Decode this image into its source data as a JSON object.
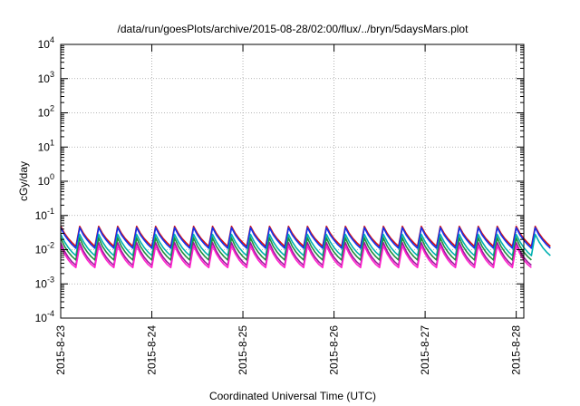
{
  "chart_data": {
    "type": "line",
    "title": "/data/run/goesPlots/archive/2015-08-28/02:00/flux/../bryn/5daysMars.plot",
    "xlabel": "Coordinated Universal Time (UTC)",
    "ylabel": "cGy/day",
    "yscale": "log",
    "ylim": [
      0.0001,
      10000
    ],
    "y_ticks": [
      {
        "base": "10",
        "exp": "-4",
        "value": 0.0001
      },
      {
        "base": "10",
        "exp": "-3",
        "value": 0.001
      },
      {
        "base": "10",
        "exp": "-2",
        "value": 0.01
      },
      {
        "base": "10",
        "exp": "-1",
        "value": 0.1
      },
      {
        "base": "10",
        "exp": "0",
        "value": 1
      },
      {
        "base": "10",
        "exp": "1",
        "value": 10
      },
      {
        "base": "10",
        "exp": "2",
        "value": 100
      },
      {
        "base": "10",
        "exp": "3",
        "value": 1000
      },
      {
        "base": "10",
        "exp": "4",
        "value": 10000
      }
    ],
    "xlim": [
      "2015-08-23 00:00",
      "2015-08-28 02:00"
    ],
    "x_ticks": [
      "2015-8-23",
      "2015-8-24",
      "2015-8-25",
      "2015-8-26",
      "2015-8-27",
      "2015-8-28"
    ],
    "grid": true,
    "legend": "none",
    "sample_interval_hours": 1,
    "series_colors": [
      "#dd1111",
      "#1133ee",
      "#00b0b0",
      "#1f8f3f",
      "#9b1a9b",
      "#ff22cc"
    ],
    "series": [
      {
        "values": [
          0.048,
          0.03,
          0.021,
          0.016,
          0.0125,
          0.048,
          0.03,
          0.021,
          0.016,
          0.0125,
          0.048,
          0.03,
          0.021,
          0.016,
          0.0125,
          0.048,
          0.03,
          0.021,
          0.016,
          0.0125,
          0.048,
          0.03,
          0.021,
          0.016,
          0.0125,
          0.048,
          0.03,
          0.021,
          0.016,
          0.0125,
          0.048,
          0.03,
          0.021,
          0.016,
          0.0125,
          0.048,
          0.03,
          0.021,
          0.016,
          0.0125,
          0.048,
          0.03,
          0.021,
          0.016,
          0.0125,
          0.048,
          0.03,
          0.021,
          0.016,
          0.0125,
          0.048,
          0.03,
          0.021,
          0.016,
          0.0125,
          0.048,
          0.03,
          0.021,
          0.016,
          0.0125,
          0.048,
          0.03,
          0.021,
          0.016,
          0.0125,
          0.048,
          0.03,
          0.021,
          0.016,
          0.0125,
          0.048,
          0.03,
          0.021,
          0.016,
          0.0125,
          0.048,
          0.03,
          0.021,
          0.016,
          0.0125,
          0.048,
          0.03,
          0.021,
          0.016,
          0.0125,
          0.048,
          0.03,
          0.021,
          0.016,
          0.0125,
          0.048,
          0.03,
          0.021,
          0.016,
          0.0125,
          0.048,
          0.03,
          0.021,
          0.016,
          0.0125,
          0.048,
          0.03,
          0.021,
          0.016,
          0.0125,
          0.048,
          0.03,
          0.021,
          0.016,
          0.0125,
          0.048,
          0.03,
          0.021,
          0.016,
          0.0125,
          0.048,
          0.03,
          0.021,
          0.016,
          0.0125,
          0.048,
          0.03,
          0.021,
          0.016,
          0.0125,
          0.048,
          0.03,
          0.021,
          0.016,
          0.0125
        ]
      },
      {
        "values": [
          0.044,
          0.027,
          0.019,
          0.014,
          0.011,
          0.044,
          0.027,
          0.019,
          0.014,
          0.011,
          0.044,
          0.027,
          0.019,
          0.014,
          0.011,
          0.044,
          0.027,
          0.019,
          0.014,
          0.011,
          0.044,
          0.027,
          0.019,
          0.014,
          0.011,
          0.044,
          0.027,
          0.019,
          0.014,
          0.011,
          0.044,
          0.027,
          0.019,
          0.014,
          0.011,
          0.044,
          0.027,
          0.019,
          0.014,
          0.011,
          0.044,
          0.027,
          0.019,
          0.014,
          0.011,
          0.044,
          0.027,
          0.019,
          0.014,
          0.011,
          0.044,
          0.027,
          0.019,
          0.014,
          0.011,
          0.044,
          0.027,
          0.019,
          0.014,
          0.011,
          0.044,
          0.027,
          0.019,
          0.014,
          0.011,
          0.044,
          0.027,
          0.019,
          0.014,
          0.011,
          0.044,
          0.027,
          0.019,
          0.014,
          0.011,
          0.044,
          0.027,
          0.019,
          0.014,
          0.011,
          0.044,
          0.027,
          0.019,
          0.014,
          0.011,
          0.044,
          0.027,
          0.019,
          0.014,
          0.011,
          0.044,
          0.027,
          0.019,
          0.014,
          0.011,
          0.044,
          0.027,
          0.019,
          0.014,
          0.011,
          0.044,
          0.027,
          0.019,
          0.014,
          0.011,
          0.044,
          0.027,
          0.019,
          0.014,
          0.011,
          0.044,
          0.027,
          0.019,
          0.014,
          0.011,
          0.044,
          0.027,
          0.019,
          0.014,
          0.011,
          0.044,
          0.027,
          0.019,
          0.014,
          0.011,
          0.044,
          0.027,
          0.019,
          0.014,
          0.011
        ]
      },
      {
        "values": [
          0.028,
          0.017,
          0.0115,
          0.0085,
          0.0067,
          0.028,
          0.017,
          0.0115,
          0.0085,
          0.0067,
          0.028,
          0.017,
          0.0115,
          0.0085,
          0.0067,
          0.028,
          0.017,
          0.0115,
          0.0085,
          0.0067,
          0.028,
          0.017,
          0.0115,
          0.0085,
          0.0067,
          0.028,
          0.017,
          0.0115,
          0.0085,
          0.0067,
          0.028,
          0.017,
          0.0115,
          0.0085,
          0.0067,
          0.028,
          0.017,
          0.0115,
          0.0085,
          0.0067,
          0.028,
          0.017,
          0.0115,
          0.0085,
          0.0067,
          0.028,
          0.017,
          0.0115,
          0.0085,
          0.0067,
          0.028,
          0.017,
          0.0115,
          0.0085,
          0.0067,
          0.028,
          0.017,
          0.0115,
          0.0085,
          0.0067,
          0.028,
          0.017,
          0.0115,
          0.0085,
          0.0067,
          0.028,
          0.017,
          0.0115,
          0.0085,
          0.0067,
          0.028,
          0.017,
          0.0115,
          0.0085,
          0.0067,
          0.028,
          0.017,
          0.0115,
          0.0085,
          0.0067,
          0.028,
          0.017,
          0.0115,
          0.0085,
          0.0067,
          0.028,
          0.017,
          0.0115,
          0.0085,
          0.0067,
          0.028,
          0.017,
          0.0115,
          0.0085,
          0.0067,
          0.028,
          0.017,
          0.0115,
          0.0085,
          0.0067,
          0.028,
          0.017,
          0.0115,
          0.0085,
          0.0067,
          0.028,
          0.017,
          0.0115,
          0.0085,
          0.0067,
          0.028,
          0.017,
          0.0115,
          0.0085,
          0.0067,
          0.028,
          0.017,
          0.0115,
          0.0085,
          0.0067,
          0.028,
          0.017,
          0.0115,
          0.0085,
          0.0067,
          0.028,
          0.017,
          0.0115,
          0.0085,
          0.0067
        ]
      },
      {
        "values": [
          0.022,
          0.0125,
          0.0085,
          0.0063,
          0.005,
          0.022,
          0.0125,
          0.0085,
          0.0063,
          0.005,
          0.022,
          0.0125,
          0.0085,
          0.0063,
          0.005,
          0.022,
          0.0125,
          0.0085,
          0.0063,
          0.005,
          0.022,
          0.0125,
          0.0085,
          0.0063,
          0.005,
          0.022,
          0.0125,
          0.0085,
          0.0063,
          0.005,
          0.022,
          0.0125,
          0.0085,
          0.0063,
          0.005,
          0.022,
          0.0125,
          0.0085,
          0.0063,
          0.005,
          0.022,
          0.0125,
          0.0085,
          0.0063,
          0.005,
          0.022,
          0.0125,
          0.0085,
          0.0063,
          0.005,
          0.022,
          0.0125,
          0.0085,
          0.0063,
          0.005,
          0.022,
          0.0125,
          0.0085,
          0.0063,
          0.005,
          0.022,
          0.0125,
          0.0085,
          0.0063,
          0.005,
          0.022,
          0.0125,
          0.0085,
          0.0063,
          0.005,
          0.022,
          0.0125,
          0.0085,
          0.0063,
          0.005,
          0.022,
          0.0125,
          0.0085,
          0.0063,
          0.005,
          0.022,
          0.0125,
          0.0085,
          0.0063,
          0.005,
          0.022,
          0.0125,
          0.0085,
          0.0063,
          0.005,
          0.022,
          0.0125,
          0.0085,
          0.0063,
          0.005,
          0.022,
          0.0125,
          0.0085,
          0.0063,
          0.005,
          0.022,
          0.0125,
          0.0085,
          0.0063,
          0.005,
          0.022,
          0.0125,
          0.0085,
          0.0063,
          0.005,
          0.022,
          0.0125,
          0.0085,
          0.0063,
          0.005,
          0.022,
          0.0125,
          0.0085,
          0.0063,
          0.005,
          0.022,
          0.0125,
          0.0085,
          0.0063,
          0.005
        ]
      },
      {
        "values": [
          0.016,
          0.009,
          0.006,
          0.0044,
          0.0035,
          0.016,
          0.009,
          0.006,
          0.0044,
          0.0035,
          0.016,
          0.009,
          0.006,
          0.0044,
          0.0035,
          0.016,
          0.009,
          0.006,
          0.0044,
          0.0035,
          0.016,
          0.009,
          0.006,
          0.0044,
          0.0035,
          0.016,
          0.009,
          0.006,
          0.0044,
          0.0035,
          0.016,
          0.009,
          0.006,
          0.0044,
          0.0035,
          0.016,
          0.009,
          0.006,
          0.0044,
          0.0035,
          0.016,
          0.009,
          0.006,
          0.0044,
          0.0035,
          0.016,
          0.009,
          0.006,
          0.0044,
          0.0035,
          0.016,
          0.009,
          0.006,
          0.0044,
          0.0035,
          0.016,
          0.009,
          0.006,
          0.0044,
          0.0035,
          0.016,
          0.009,
          0.006,
          0.0044,
          0.0035,
          0.016,
          0.009,
          0.006,
          0.0044,
          0.0035,
          0.016,
          0.009,
          0.006,
          0.0044,
          0.0035,
          0.016,
          0.009,
          0.006,
          0.0044,
          0.0035,
          0.016,
          0.009,
          0.006,
          0.0044,
          0.0035,
          0.016,
          0.009,
          0.006,
          0.0044,
          0.0035,
          0.016,
          0.009,
          0.006,
          0.0044,
          0.0035,
          0.016,
          0.009,
          0.006,
          0.0044,
          0.0035,
          0.016,
          0.009,
          0.006,
          0.0044,
          0.0035,
          0.016,
          0.009,
          0.006,
          0.0044,
          0.0035,
          0.016,
          0.009,
          0.006,
          0.0044,
          0.0035,
          0.016,
          0.009,
          0.006,
          0.0044,
          0.0035,
          0.016,
          0.009,
          0.006,
          0.0044,
          0.0035
        ]
      },
      {
        "values": [
          0.013,
          0.0075,
          0.005,
          0.0037,
          0.003,
          0.013,
          0.0075,
          0.005,
          0.0037,
          0.003,
          0.013,
          0.0075,
          0.005,
          0.0037,
          0.003,
          0.013,
          0.0075,
          0.005,
          0.0037,
          0.003,
          0.013,
          0.0075,
          0.005,
          0.0037,
          0.003,
          0.013,
          0.0075,
          0.005,
          0.0037,
          0.003,
          0.013,
          0.0075,
          0.005,
          0.0037,
          0.003,
          0.013,
          0.0075,
          0.005,
          0.0037,
          0.003,
          0.013,
          0.0075,
          0.005,
          0.0037,
          0.003,
          0.013,
          0.0075,
          0.005,
          0.0037,
          0.003,
          0.013,
          0.0075,
          0.005,
          0.0037,
          0.003,
          0.013,
          0.0075,
          0.005,
          0.0037,
          0.003,
          0.013,
          0.0075,
          0.005,
          0.0037,
          0.003,
          0.013,
          0.0075,
          0.005,
          0.0037,
          0.003,
          0.013,
          0.0075,
          0.005,
          0.0037,
          0.003,
          0.013,
          0.0075,
          0.005,
          0.0037,
          0.003,
          0.013,
          0.0075,
          0.005,
          0.0037,
          0.003,
          0.013,
          0.0075,
          0.005,
          0.0037,
          0.003,
          0.013,
          0.0075,
          0.005,
          0.0037,
          0.003,
          0.013,
          0.0075,
          0.005,
          0.0037,
          0.003,
          0.013,
          0.0075,
          0.005,
          0.0037,
          0.003,
          0.013,
          0.0075,
          0.005,
          0.0037,
          0.003,
          0.013,
          0.0075,
          0.005,
          0.0037,
          0.003,
          0.013,
          0.0075,
          0.005,
          0.0037,
          0.003,
          0.013,
          0.0075,
          0.005,
          0.0037,
          0.003
        ]
      }
    ]
  }
}
